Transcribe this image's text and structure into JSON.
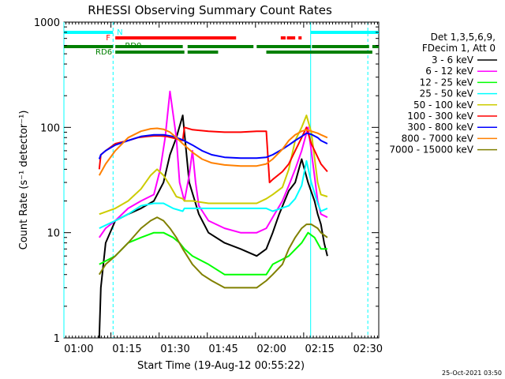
{
  "chart_data": {
    "type": "line",
    "title": "RHESSI Observing Summary Count Rates",
    "xlabel": "Start Time (19-Aug-12 00:55:22)",
    "ylabel": "Count Rate (s⁻¹ detector⁻¹)",
    "y_scale": "log",
    "ylim": [
      1,
      1000
    ],
    "xlim_minutes_after_0055": [
      0,
      98
    ],
    "x_ticks": [
      {
        "label": "01:00",
        "t": 4.63
      },
      {
        "label": "01:15",
        "t": 19.63
      },
      {
        "label": "01:30",
        "t": 34.63
      },
      {
        "label": "01:45",
        "t": 49.63
      },
      {
        "label": "02:00",
        "t": 64.63
      },
      {
        "label": "02:15",
        "t": 79.63
      },
      {
        "label": "02:30",
        "t": 94.63
      }
    ],
    "y_ticks": [
      {
        "label": "1",
        "v": 1
      },
      {
        "label": "10",
        "v": 10
      },
      {
        "label": "100",
        "v": 100
      },
      {
        "label": "1000",
        "v": 1000
      }
    ],
    "legend_position": "right",
    "legend_header": [
      "Det 1,3,5,6,9,",
      "FDecim 1, Att 0"
    ],
    "footer_timestamp": "25-Oct-2021 03:50",
    "series": [
      {
        "name": "3 - 6 keV",
        "color": "#000000"
      },
      {
        "name": "6 - 12 keV",
        "color": "#ff00ff"
      },
      {
        "name": "12 - 25 keV",
        "color": "#00ff00"
      },
      {
        "name": "25 - 50 keV",
        "color": "#00ffff"
      },
      {
        "name": "50 - 100 keV",
        "color": "#cccc00"
      },
      {
        "name": "100 - 300 keV",
        "color": "#ff0000"
      },
      {
        "name": "300 - 800 keV",
        "color": "#0000ff"
      },
      {
        "name": "800 - 7000 keV",
        "color": "#ff8000"
      },
      {
        "name": "7000 - 15000 keV",
        "color": "#808000"
      }
    ],
    "series_points": [
      {
        "x": [
          11,
          11.5,
          13,
          16,
          20,
          24,
          28,
          31,
          33,
          35,
          37,
          39,
          42,
          45,
          50,
          55,
          60,
          63,
          65,
          67,
          70,
          72,
          74,
          76,
          78,
          79,
          80,
          81,
          82
        ],
        "y": [
          1,
          3,
          8,
          13,
          15,
          17,
          20,
          30,
          55,
          80,
          130,
          30,
          15,
          10,
          8,
          7,
          6,
          7,
          10,
          15,
          25,
          30,
          50,
          30,
          20,
          15,
          12,
          8,
          6
        ]
      },
      {
        "x": [
          11,
          13,
          16,
          20,
          24,
          28,
          30,
          31.5,
          33,
          35,
          36,
          37.5,
          39,
          40,
          41,
          42,
          45,
          50,
          55,
          60,
          63,
          65,
          68,
          70,
          72,
          74,
          76,
          77,
          79,
          80,
          82
        ],
        "y": [
          9,
          11,
          13,
          17,
          20,
          23,
          40,
          80,
          220,
          80,
          30,
          20,
          35,
          60,
          30,
          18,
          13,
          11,
          10,
          10,
          11,
          14,
          20,
          28,
          40,
          60,
          100,
          60,
          20,
          15,
          14
        ]
      },
      {
        "x": [
          11,
          16,
          20,
          24,
          28,
          31,
          34,
          36,
          37.5,
          40,
          45,
          50,
          55,
          60,
          63,
          65,
          70,
          74,
          76,
          78,
          80,
          82
        ],
        "y": [
          5,
          6,
          8,
          9,
          10,
          10,
          9,
          8,
          7,
          6,
          5,
          4,
          4,
          4,
          4,
          5,
          6,
          8,
          10,
          9,
          7,
          7
        ]
      },
      {
        "x": [
          11,
          16,
          20,
          24,
          28,
          31,
          34,
          37,
          37.5,
          40,
          45,
          50,
          55,
          60,
          63,
          65,
          70,
          72,
          74,
          75.5,
          77,
          79,
          80,
          82
        ],
        "y": [
          11,
          13,
          15,
          18,
          19,
          19,
          17,
          16,
          17,
          17,
          17,
          17,
          17,
          17,
          17,
          16,
          18,
          21,
          28,
          48,
          30,
          19,
          16,
          17
        ]
      },
      {
        "x": [
          11,
          16,
          20,
          24,
          27,
          29,
          31,
          33,
          35,
          37,
          37.5,
          40,
          45,
          50,
          55,
          60,
          63,
          65,
          68,
          70,
          72,
          74,
          75.5,
          77,
          79,
          80,
          82
        ],
        "y": [
          15,
          17,
          20,
          26,
          35,
          40,
          35,
          28,
          22,
          21,
          20,
          20,
          19,
          19,
          19,
          19,
          21,
          23,
          27,
          40,
          75,
          100,
          130,
          90,
          30,
          23,
          22
        ]
      },
      {
        "x": [
          11,
          11.5,
          13,
          16,
          20,
          23,
          26,
          28,
          30,
          32,
          35,
          37,
          37.5,
          40,
          45,
          50,
          55,
          60,
          63,
          64,
          65,
          68,
          70,
          72,
          74,
          75.5,
          77,
          80,
          82
        ],
        "y": [
          40,
          55,
          60,
          70,
          75,
          80,
          82,
          83,
          83,
          82,
          78,
          75,
          100,
          95,
          92,
          90,
          90,
          92,
          92,
          30,
          32,
          38,
          45,
          60,
          80,
          100,
          70,
          45,
          38
        ]
      },
      {
        "x": [
          11,
          11.5,
          13,
          16,
          20,
          24,
          28,
          31,
          34,
          37,
          40,
          43,
          46,
          50,
          55,
          60,
          63,
          65,
          68,
          70,
          72,
          74,
          75.5,
          77,
          79,
          80,
          82
        ],
        "y": [
          50,
          55,
          60,
          68,
          75,
          82,
          85,
          85,
          82,
          76,
          68,
          60,
          55,
          52,
          51,
          51,
          52,
          55,
          62,
          68,
          75,
          82,
          88,
          86,
          80,
          75,
          70
        ]
      },
      {
        "x": [
          11,
          13,
          16,
          20,
          24,
          27,
          29,
          31,
          33,
          35,
          37,
          40,
          43,
          46,
          50,
          55,
          60,
          63,
          65,
          68,
          70,
          72,
          74,
          75.5,
          77,
          79,
          80,
          82
        ],
        "y": [
          35,
          45,
          60,
          80,
          92,
          97,
          98,
          96,
          90,
          80,
          70,
          58,
          50,
          46,
          44,
          43,
          43,
          45,
          50,
          62,
          75,
          85,
          92,
          95,
          92,
          88,
          85,
          80
        ]
      },
      {
        "x": [
          11,
          13,
          16,
          20,
          24,
          27,
          29,
          31,
          33,
          35,
          37,
          40,
          43,
          46,
          50,
          55,
          60,
          63,
          65,
          68,
          70,
          72,
          74,
          75.5,
          77,
          79,
          80,
          82
        ],
        "y": [
          4,
          5,
          6,
          8,
          11,
          13,
          14,
          13,
          11,
          9,
          7,
          5,
          4,
          3.5,
          3,
          3,
          3,
          3.5,
          4,
          5,
          7,
          9,
          11,
          12,
          12,
          11,
          10,
          9
        ]
      }
    ],
    "attenuator_flags": [
      {
        "label": "N",
        "color": "#00ffff",
        "segments": [
          [
            0,
            15.3
          ],
          [
            76.8,
            98
          ]
        ]
      },
      {
        "label": "F",
        "color": "#ff0000",
        "segments": [
          [
            16,
            53.6
          ],
          [
            67.5,
            69
          ],
          [
            69.4,
            72
          ],
          [
            73,
            74
          ]
        ]
      },
      {
        "label": "RD0",
        "color": "#008000",
        "segments": [
          [
            0,
            15.3
          ],
          [
            16,
            37
          ],
          [
            38.5,
            59
          ],
          [
            60,
            76.8
          ],
          [
            77.2,
            95
          ],
          [
            96,
            98
          ]
        ]
      },
      {
        "label": "RD6",
        "color": "#008000",
        "segments": [
          [
            16,
            37.5
          ],
          [
            38.5,
            48
          ],
          [
            63,
            96
          ]
        ]
      }
    ],
    "vertical_markers": [
      {
        "t": 0,
        "color": "#00ffff",
        "style": "solid"
      },
      {
        "t": 15.3,
        "color": "#00ffff",
        "style": "dashed"
      },
      {
        "t": 76.8,
        "color": "#00ffff",
        "style": "solid"
      },
      {
        "t": 94.6,
        "color": "#00ffff",
        "style": "dashed"
      }
    ]
  }
}
